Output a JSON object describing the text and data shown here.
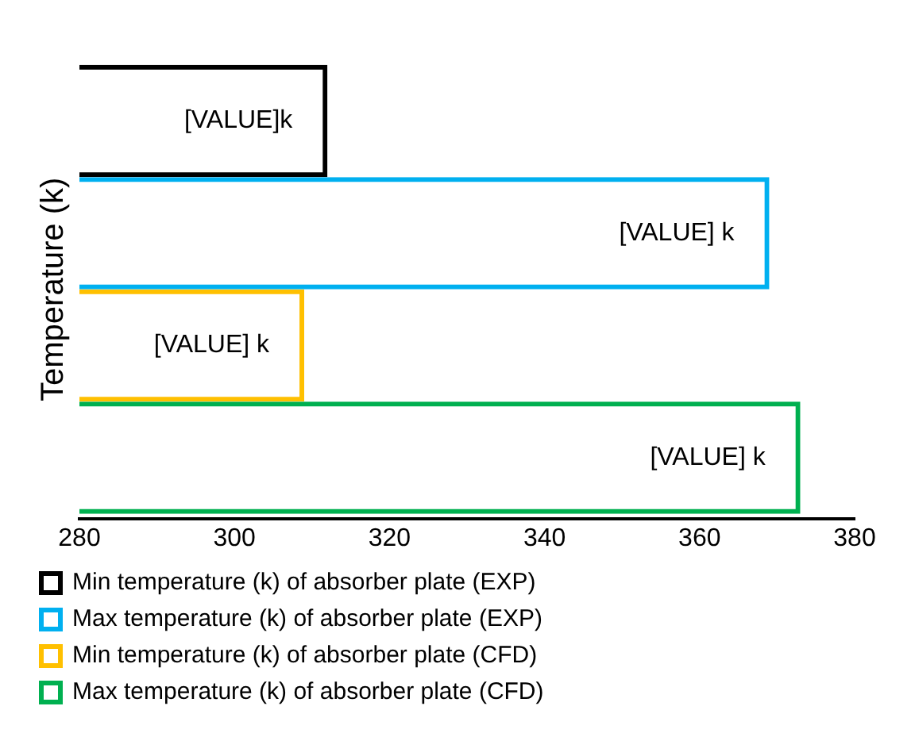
{
  "chart_data": {
    "type": "bar",
    "orientation": "horizontal",
    "ylabel": "Temperature (k)",
    "categories": [
      null
    ],
    "series": [
      {
        "name": "Min temperature (k) of absorber plate (EXP)",
        "color": "#000000",
        "values": [
          312
        ],
        "value_labels": [
          "[VALUE]k"
        ]
      },
      {
        "name": "Max temperature (k) of absorber plate (EXP)",
        "color": "#00b0f0",
        "values": [
          369
        ],
        "value_labels": [
          "[VALUE] k"
        ]
      },
      {
        "name": "Min temperature (k) of absorber plate (CFD)",
        "color": "#ffc000",
        "values": [
          309
        ],
        "value_labels": [
          "[VALUE] k"
        ]
      },
      {
        "name": "Max temperature (k) of absorber plate (CFD)",
        "color": "#00b050",
        "values": [
          373
        ],
        "value_labels": [
          "[VALUE] k"
        ]
      }
    ],
    "xlim": [
      280,
      380
    ],
    "xticks": [
      280,
      300,
      320,
      340,
      360,
      380
    ],
    "grid": false,
    "legend": "bottom"
  }
}
